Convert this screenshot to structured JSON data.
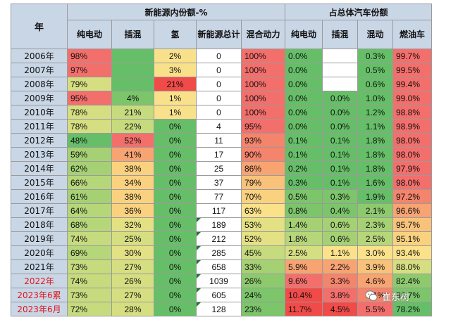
{
  "header": {
    "year_label": "年",
    "group1": "新能源内份额-%",
    "group2": "占总体汽车份额",
    "columns": [
      "纯电动",
      "插混",
      "氢",
      "新能源总计",
      "混合动力",
      "纯电动",
      "插混",
      "混动",
      "燃油车"
    ]
  },
  "rows": [
    {
      "year": "2006年",
      "red": false,
      "cells": [
        {
          "v": "98%",
          "bg": "#f36f6c"
        },
        {
          "v": "",
          "bg": "#66bf68"
        },
        {
          "v": "2%",
          "bg": "#f9e18c"
        },
        {
          "v": "0",
          "bg": "#ffffff"
        },
        {
          "v": "100%",
          "bg": "#f36f6c"
        },
        {
          "v": "0.0%",
          "bg": "#66bf68"
        },
        {
          "v": "",
          "bg": "#ffffff"
        },
        {
          "v": "0.3%",
          "bg": "#66bf68"
        },
        {
          "v": "99.7%",
          "bg": "#f36f6c"
        }
      ]
    },
    {
      "year": "2007年",
      "red": false,
      "cells": [
        {
          "v": "97%",
          "bg": "#f36f6c"
        },
        {
          "v": "",
          "bg": "#66bf68"
        },
        {
          "v": "3%",
          "bg": "#f9e18c"
        },
        {
          "v": "0",
          "bg": "#ffffff"
        },
        {
          "v": "100%",
          "bg": "#f36f6c"
        },
        {
          "v": "0.0%",
          "bg": "#66bf68"
        },
        {
          "v": "",
          "bg": "#ffffff"
        },
        {
          "v": "0.5%",
          "bg": "#66bf68"
        },
        {
          "v": "99.5%",
          "bg": "#f36f6c"
        }
      ]
    },
    {
      "year": "2008年",
      "red": false,
      "cells": [
        {
          "v": "79%",
          "bg": "#d6de82"
        },
        {
          "v": "",
          "bg": "#66bf68"
        },
        {
          "v": "21%",
          "bg": "#f04b49"
        },
        {
          "v": "0",
          "bg": "#ffffff"
        },
        {
          "v": "100%",
          "bg": "#f36f6c"
        },
        {
          "v": "0.0%",
          "bg": "#66bf68"
        },
        {
          "v": "",
          "bg": "#ffffff"
        },
        {
          "v": "0.6%",
          "bg": "#66bf68"
        },
        {
          "v": "99.4%",
          "bg": "#f36f6c"
        }
      ]
    },
    {
      "year": "2009年",
      "red": false,
      "cells": [
        {
          "v": "95%",
          "bg": "#f36f6c"
        },
        {
          "v": "4%",
          "bg": "#7cc56a"
        },
        {
          "v": "1%",
          "bg": "#f9e18c"
        },
        {
          "v": "0",
          "bg": "#ffffff"
        },
        {
          "v": "100%",
          "bg": "#f36f6c"
        },
        {
          "v": "0.0%",
          "bg": "#66bf68"
        },
        {
          "v": "0.0%",
          "bg": "#66bf68"
        },
        {
          "v": "1.0%",
          "bg": "#66bf68"
        },
        {
          "v": "99.0%",
          "bg": "#f36f6c"
        }
      ]
    },
    {
      "year": "2010年",
      "red": false,
      "cells": [
        {
          "v": "78%",
          "bg": "#d6de82"
        },
        {
          "v": "21%",
          "bg": "#c6db7e"
        },
        {
          "v": "1%",
          "bg": "#f9e18c"
        },
        {
          "v": "0",
          "bg": "#ffffff"
        },
        {
          "v": "100%",
          "bg": "#f36f6c"
        },
        {
          "v": "0.0%",
          "bg": "#66bf68"
        },
        {
          "v": "0.0%",
          "bg": "#66bf68"
        },
        {
          "v": "1.2%",
          "bg": "#66bf68"
        },
        {
          "v": "98.8%",
          "bg": "#f36f6c"
        }
      ]
    },
    {
      "year": "2011年",
      "red": false,
      "cells": [
        {
          "v": "78%",
          "bg": "#d6de82"
        },
        {
          "v": "22%",
          "bg": "#c6db7e"
        },
        {
          "v": "0%",
          "bg": "#66bf68"
        },
        {
          "v": "4",
          "bg": "#ffffff"
        },
        {
          "v": "95%",
          "bg": "#f36f6c"
        },
        {
          "v": "0.0%",
          "bg": "#66bf68"
        },
        {
          "v": "0.0%",
          "bg": "#66bf68"
        },
        {
          "v": "1.1%",
          "bg": "#66bf68"
        },
        {
          "v": "98.9%",
          "bg": "#f36f6c"
        }
      ]
    },
    {
      "year": "2012年",
      "red": false,
      "cells": [
        {
          "v": "48%",
          "bg": "#66bf68"
        },
        {
          "v": "52%",
          "bg": "#f36f6c"
        },
        {
          "v": "0%",
          "bg": "#66bf68"
        },
        {
          "v": "11",
          "bg": "#ffffff"
        },
        {
          "v": "93%",
          "bg": "#f4846c"
        },
        {
          "v": "0.1%",
          "bg": "#66bf68"
        },
        {
          "v": "0.1%",
          "bg": "#66bf68"
        },
        {
          "v": "1.8%",
          "bg": "#66bf68"
        },
        {
          "v": "98.0%",
          "bg": "#f36f6c"
        }
      ]
    },
    {
      "year": "2013年",
      "red": false,
      "cells": [
        {
          "v": "59%",
          "bg": "#a5d174"
        },
        {
          "v": "41%",
          "bg": "#f7a372"
        },
        {
          "v": "0%",
          "bg": "#66bf68"
        },
        {
          "v": "17",
          "bg": "#ffffff"
        },
        {
          "v": "90%",
          "bg": "#f4846c"
        },
        {
          "v": "0.1%",
          "bg": "#66bf68"
        },
        {
          "v": "0.1%",
          "bg": "#66bf68"
        },
        {
          "v": "1.8%",
          "bg": "#66bf68"
        },
        {
          "v": "98.0%",
          "bg": "#f36f6c"
        }
      ]
    },
    {
      "year": "2014年",
      "red": false,
      "cells": [
        {
          "v": "62%",
          "bg": "#a5d174"
        },
        {
          "v": "38%",
          "bg": "#fad27f"
        },
        {
          "v": "0%",
          "bg": "#66bf68"
        },
        {
          "v": "25",
          "bg": "#ffffff"
        },
        {
          "v": "86%",
          "bg": "#f7a372"
        },
        {
          "v": "0.2%",
          "bg": "#66bf68"
        },
        {
          "v": "0.1%",
          "bg": "#66bf68"
        },
        {
          "v": "1.8%",
          "bg": "#66bf68"
        },
        {
          "v": "97.9%",
          "bg": "#f36f6c"
        }
      ]
    },
    {
      "year": "2015年",
      "red": false,
      "cells": [
        {
          "v": "66%",
          "bg": "#b6d67a"
        },
        {
          "v": "34%",
          "bg": "#fad27f"
        },
        {
          "v": "0%",
          "bg": "#66bf68"
        },
        {
          "v": "37",
          "bg": "#ffffff"
        },
        {
          "v": "79%",
          "bg": "#f9c27a"
        },
        {
          "v": "0.3%",
          "bg": "#66bf68"
        },
        {
          "v": "0.1%",
          "bg": "#66bf68"
        },
        {
          "v": "1.6%",
          "bg": "#66bf68"
        },
        {
          "v": "98.0%",
          "bg": "#f36f6c"
        }
      ]
    },
    {
      "year": "2016年",
      "red": false,
      "cells": [
        {
          "v": "61%",
          "bg": "#a5d174"
        },
        {
          "v": "38%",
          "bg": "#fad27f"
        },
        {
          "v": "0%",
          "bg": "#66bf68"
        },
        {
          "v": "77",
          "bg": "#ffffff"
        },
        {
          "v": "70%",
          "bg": "#fad27f"
        },
        {
          "v": "0.5%",
          "bg": "#7cc56a"
        },
        {
          "v": "0.3%",
          "bg": "#7cc56a"
        },
        {
          "v": "1.9%",
          "bg": "#66bf68"
        },
        {
          "v": "97.2%",
          "bg": "#f4846c"
        }
      ]
    },
    {
      "year": "2017年",
      "red": false,
      "cells": [
        {
          "v": "64%",
          "bg": "#b6d67a"
        },
        {
          "v": "36%",
          "bg": "#fad27f"
        },
        {
          "v": "0%",
          "bg": "#66bf68"
        },
        {
          "v": "117",
          "bg": "#ffffff"
        },
        {
          "v": "63%",
          "bg": "#fbe28a"
        },
        {
          "v": "0.8%",
          "bg": "#7cc56a"
        },
        {
          "v": "0.4%",
          "bg": "#7cc56a"
        },
        {
          "v": "2.1%",
          "bg": "#8dca6e"
        },
        {
          "v": "96.6%",
          "bg": "#f7a372"
        }
      ]
    },
    {
      "year": "2018年",
      "red": false,
      "cells": [
        {
          "v": "68%",
          "bg": "#b6d67a"
        },
        {
          "v": "32%",
          "bg": "#e4e084"
        },
        {
          "v": "0%",
          "bg": "#66bf68"
        },
        {
          "v": "189",
          "bg": "#ffffff",
          "tri": true
        },
        {
          "v": "53%",
          "bg": "#e4e084"
        },
        {
          "v": "1.4%",
          "bg": "#a5d174"
        },
        {
          "v": "0.6%",
          "bg": "#a5d174"
        },
        {
          "v": "2.3%",
          "bg": "#a5d174"
        },
        {
          "v": "95.7%",
          "bg": "#f9c27a"
        }
      ]
    },
    {
      "year": "2019年",
      "red": false,
      "cells": [
        {
          "v": "74%",
          "bg": "#c6db7e"
        },
        {
          "v": "25%",
          "bg": "#d6de82"
        },
        {
          "v": "0%",
          "bg": "#66bf68"
        },
        {
          "v": "212",
          "bg": "#ffffff",
          "tri": true
        },
        {
          "v": "52%",
          "bg": "#e4e084"
        },
        {
          "v": "1.8%",
          "bg": "#b6d67a"
        },
        {
          "v": "0.6%",
          "bg": "#a5d174"
        },
        {
          "v": "2.5%",
          "bg": "#b6d67a"
        },
        {
          "v": "95.1%",
          "bg": "#fad27f"
        }
      ]
    },
    {
      "year": "2020年",
      "red": false,
      "cells": [
        {
          "v": "69%",
          "bg": "#b6d67a"
        },
        {
          "v": "30%",
          "bg": "#e4e084"
        },
        {
          "v": "0%",
          "bg": "#66bf68"
        },
        {
          "v": "285",
          "bg": "#ffffff",
          "tri": true
        },
        {
          "v": "45%",
          "bg": "#c6db7e"
        },
        {
          "v": "2.5%",
          "bg": "#d6de82"
        },
        {
          "v": "1.1%",
          "bg": "#fbe28a"
        },
        {
          "v": "3.0%",
          "bg": "#fbe28a"
        },
        {
          "v": "93.4%",
          "bg": "#fbe28a"
        }
      ]
    },
    {
      "year": "2021年",
      "red": false,
      "cells": [
        {
          "v": "73%",
          "bg": "#c6db7e"
        },
        {
          "v": "27%",
          "bg": "#d6de82"
        },
        {
          "v": "0%",
          "bg": "#66bf68"
        },
        {
          "v": "658",
          "bg": "#ffffff",
          "tri": true
        },
        {
          "v": "33%",
          "bg": "#a5d174"
        },
        {
          "v": "5.9%",
          "bg": "#f7a372"
        },
        {
          "v": "2.2%",
          "bg": "#f7a372"
        },
        {
          "v": "3.9%",
          "bg": "#f9c27a"
        },
        {
          "v": "88.0%",
          "bg": "#d6de82"
        }
      ]
    },
    {
      "year": "2022年",
      "red": true,
      "cells": [
        {
          "v": "74%",
          "bg": "#c6db7e"
        },
        {
          "v": "26%",
          "bg": "#d6de82"
        },
        {
          "v": "0%",
          "bg": "#66bf68"
        },
        {
          "v": "1039",
          "bg": "#ffffff",
          "tri": true
        },
        {
          "v": "26%",
          "bg": "#8dca6e"
        },
        {
          "v": "9.6%",
          "bg": "#f36f6c"
        },
        {
          "v": "3.3%",
          "bg": "#f4846c"
        },
        {
          "v": "4.6%",
          "bg": "#f7a372"
        },
        {
          "v": "82.4%",
          "bg": "#8dca6e"
        }
      ]
    },
    {
      "year": "2023年6累",
      "red": true,
      "cells": [
        {
          "v": "73%",
          "bg": "#c6db7e"
        },
        {
          "v": "27%",
          "bg": "#d6de82"
        },
        {
          "v": "0%",
          "bg": "#66bf68"
        },
        {
          "v": "605",
          "bg": "#ffffff",
          "tri": true
        },
        {
          "v": "24%",
          "bg": "#7cc56a"
        },
        {
          "v": "10.4%",
          "bg": "#f04b49"
        },
        {
          "v": "3.8%",
          "bg": "#f36f6c"
        },
        {
          "v": "5.1%",
          "bg": "#f4846c"
        },
        {
          "v": "80.7%",
          "bg": "#7cc56a"
        }
      ]
    },
    {
      "year": "2023年6月",
      "red": true,
      "cells": [
        {
          "v": "72%",
          "bg": "#c6db7e"
        },
        {
          "v": "28%",
          "bg": "#d6de82"
        },
        {
          "v": "0%",
          "bg": "#66bf68"
        },
        {
          "v": "128",
          "bg": "#ffffff",
          "tri": true
        },
        {
          "v": "23%",
          "bg": "#7cc56a"
        },
        {
          "v": "11.7%",
          "bg": "#f04b49"
        },
        {
          "v": "4.5%",
          "bg": "#f04b49"
        },
        {
          "v": "5.5%",
          "bg": "#f36f6c"
        },
        {
          "v": "78.2%",
          "bg": "#66bf68"
        }
      ]
    }
  ],
  "watermark": {
    "text": "崔东树",
    "icon": "wechat-icon"
  }
}
